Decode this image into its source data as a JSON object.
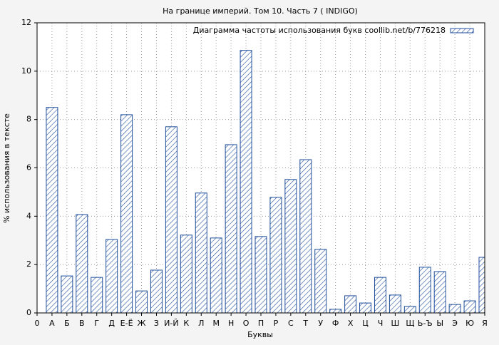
{
  "chart_data": {
    "type": "bar",
    "title": "На границе империй. Том 10. Часть 7 ( INDIGO)",
    "x_label": "Буквы",
    "y_label": "% использования в тексте",
    "legend": "Диаграмма частоты использования букв coollib.net/b/776218",
    "legend_position": "upper right",
    "color": "#1f4e9c",
    "grid": true,
    "categories": [
      "0",
      "А",
      "Б",
      "В",
      "Г",
      "Д",
      "Е-Ё",
      "Ж",
      "З",
      "И-Й",
      "К",
      "Л",
      "М",
      "Н",
      "О",
      "П",
      "Р",
      "С",
      "Т",
      "У",
      "Ф",
      "Х",
      "Ц",
      "Ч",
      "Ш",
      "Щ",
      "Ь-Ъ",
      "Ы",
      "Э",
      "Ю",
      "Я"
    ],
    "values": [
      null,
      8.5,
      1.53,
      4.07,
      1.47,
      3.04,
      8.2,
      0.91,
      1.77,
      7.7,
      3.22,
      4.96,
      3.1,
      6.96,
      10.86,
      3.16,
      4.78,
      5.52,
      6.34,
      2.63,
      0.15,
      0.71,
      0.41,
      1.47,
      0.74,
      0.27,
      1.89,
      1.71,
      0.35,
      0.5,
      2.3
    ],
    "ylim": [
      0,
      12
    ],
    "yticks": [
      0,
      2,
      4,
      6,
      8,
      10,
      12
    ]
  }
}
